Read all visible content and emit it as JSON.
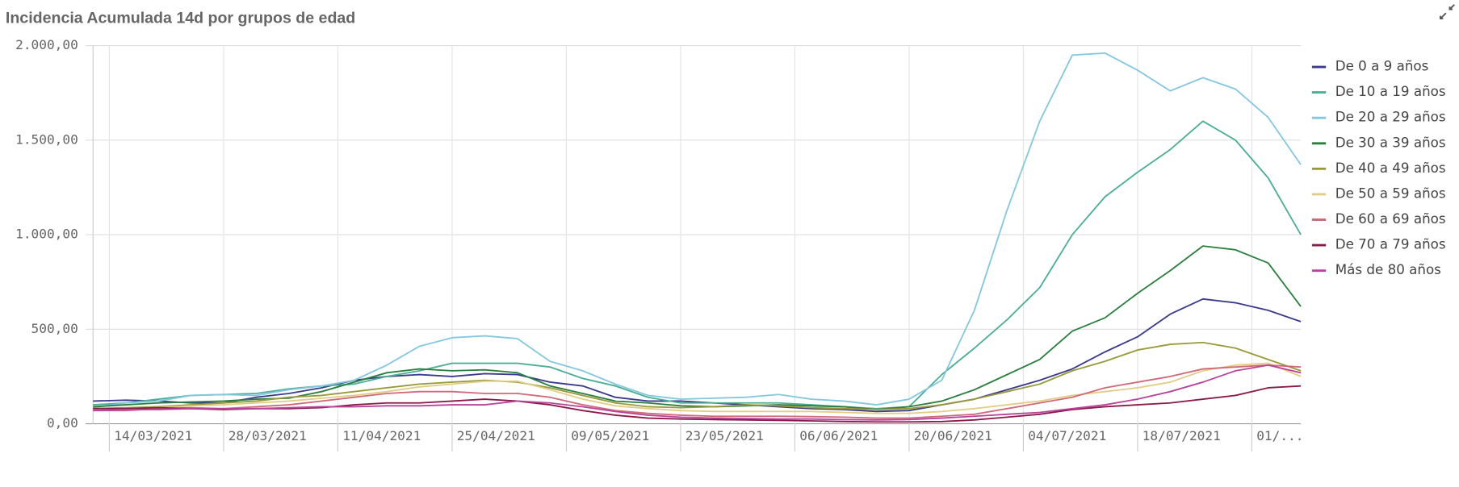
{
  "chart_data": {
    "type": "line",
    "title": "Incidencia Acumulada 14d por grupos de edad",
    "x": [
      "12/03/2021",
      "16/03/2021",
      "20/03/2021",
      "24/03/2021",
      "28/03/2021",
      "01/04/2021",
      "05/04/2021",
      "09/04/2021",
      "13/04/2021",
      "17/04/2021",
      "21/04/2021",
      "25/04/2021",
      "29/04/2021",
      "03/05/2021",
      "07/05/2021",
      "11/05/2021",
      "15/05/2021",
      "19/05/2021",
      "23/05/2021",
      "27/05/2021",
      "31/05/2021",
      "04/06/2021",
      "08/06/2021",
      "12/06/2021",
      "16/06/2021",
      "20/06/2021",
      "24/06/2021",
      "28/06/2021",
      "02/07/2021",
      "06/07/2021",
      "10/07/2021",
      "14/07/2021",
      "18/07/2021",
      "22/07/2021",
      "26/07/2021",
      "30/07/2021",
      "03/08/2021",
      "07/08/2021"
    ],
    "xlim": [
      "12/03/2021",
      "07/08/2021"
    ],
    "xticks": [
      {
        "value": "14/03/2021",
        "label": "14/03/2021"
      },
      {
        "value": "28/03/2021",
        "label": "28/03/2021"
      },
      {
        "value": "11/04/2021",
        "label": "11/04/2021"
      },
      {
        "value": "25/04/2021",
        "label": "25/04/2021"
      },
      {
        "value": "09/05/2021",
        "label": "09/05/2021"
      },
      {
        "value": "23/05/2021",
        "label": "23/05/2021"
      },
      {
        "value": "06/06/2021",
        "label": "06/06/2021"
      },
      {
        "value": "20/06/2021",
        "label": "20/06/2021"
      },
      {
        "value": "04/07/2021",
        "label": "04/07/2021"
      },
      {
        "value": "18/07/2021",
        "label": "18/07/2021"
      },
      {
        "value": "01/08/2021",
        "label": "01/..."
      }
    ],
    "ylim": [
      0,
      2000
    ],
    "yticks": [
      {
        "value": 0,
        "label": "0,00"
      },
      {
        "value": 500,
        "label": "500,00"
      },
      {
        "value": 1000,
        "label": "1.000,00"
      },
      {
        "value": 1500,
        "label": "1.500,00"
      },
      {
        "value": 2000,
        "label": "2.000,00"
      }
    ],
    "grid": true,
    "legend": "right",
    "series": [
      {
        "name": "De 0 a 9 años",
        "color": "#3b3a8c",
        "values": [
          120,
          125,
          120,
          110,
          110,
          140,
          160,
          190,
          230,
          250,
          260,
          250,
          265,
          260,
          220,
          200,
          140,
          120,
          120,
          110,
          100,
          90,
          80,
          75,
          65,
          70,
          100,
          130,
          180,
          230,
          290,
          380,
          460,
          580,
          660,
          640,
          600,
          540
        ]
      },
      {
        "name": "De 10 a 19 años",
        "color": "#4aaf94",
        "values": [
          100,
          110,
          130,
          150,
          155,
          160,
          185,
          200,
          210,
          250,
          280,
          320,
          320,
          320,
          300,
          240,
          200,
          140,
          110,
          110,
          110,
          110,
          100,
          90,
          80,
          90,
          260,
          400,
          550,
          720,
          1000,
          1200,
          1330,
          1450,
          1600,
          1500,
          1300,
          1000
        ]
      },
      {
        "name": "De 20 a 29 años",
        "color": "#84c8e0",
        "values": [
          85,
          110,
          120,
          150,
          155,
          150,
          180,
          200,
          230,
          310,
          410,
          455,
          465,
          450,
          330,
          280,
          210,
          150,
          130,
          135,
          140,
          155,
          130,
          120,
          100,
          130,
          230,
          600,
          1130,
          1600,
          1950,
          1960,
          1870,
          1760,
          1830,
          1770,
          1620,
          1370
        ]
      },
      {
        "name": "De 30 a 39 años",
        "color": "#2a8040",
        "values": [
          90,
          100,
          110,
          115,
          120,
          130,
          135,
          170,
          220,
          270,
          290,
          280,
          285,
          270,
          200,
          160,
          120,
          110,
          95,
          90,
          95,
          100,
          95,
          90,
          75,
          90,
          120,
          180,
          260,
          340,
          490,
          560,
          690,
          810,
          940,
          920,
          850,
          620
        ]
      },
      {
        "name": "De 40 a 49 años",
        "color": "#9a9a3a",
        "values": [
          80,
          85,
          90,
          100,
          110,
          120,
          140,
          150,
          170,
          190,
          210,
          220,
          230,
          220,
          190,
          150,
          110,
          90,
          85,
          90,
          100,
          95,
          85,
          80,
          75,
          80,
          100,
          130,
          170,
          210,
          280,
          330,
          390,
          420,
          430,
          400,
          340,
          280
        ]
      },
      {
        "name": "De 50 a 59 años",
        "color": "#e2cd84",
        "values": [
          70,
          75,
          85,
          95,
          100,
          110,
          120,
          135,
          150,
          170,
          195,
          210,
          225,
          225,
          180,
          130,
          95,
          80,
          70,
          65,
          65,
          65,
          65,
          60,
          55,
          55,
          65,
          80,
          100,
          120,
          150,
          170,
          190,
          220,
          280,
          310,
          320,
          250
        ]
      },
      {
        "name": "De 60 a 69 años",
        "color": "#d06a7a",
        "values": [
          70,
          70,
          80,
          85,
          80,
          90,
          100,
          120,
          140,
          160,
          170,
          170,
          160,
          160,
          140,
          100,
          70,
          55,
          45,
          40,
          40,
          40,
          38,
          35,
          30,
          30,
          40,
          50,
          80,
          110,
          140,
          190,
          220,
          250,
          290,
          300,
          310,
          300
        ]
      },
      {
        "name": "De 70 a 79 años",
        "color": "#8b1a4a",
        "values": [
          80,
          80,
          85,
          80,
          75,
          80,
          80,
          85,
          100,
          110,
          110,
          120,
          130,
          120,
          100,
          70,
          45,
          30,
          25,
          22,
          20,
          18,
          15,
          12,
          10,
          10,
          12,
          20,
          35,
          50,
          75,
          90,
          100,
          110,
          130,
          150,
          190,
          200
        ]
      },
      {
        "name": "Más de 80 años",
        "color": "#b8449b",
        "values": [
          70,
          75,
          75,
          80,
          80,
          80,
          85,
          90,
          90,
          95,
          95,
          100,
          100,
          120,
          110,
          90,
          65,
          45,
          35,
          30,
          28,
          25,
          25,
          22,
          20,
          22,
          30,
          40,
          50,
          60,
          80,
          100,
          130,
          170,
          220,
          280,
          310,
          270
        ]
      }
    ]
  }
}
